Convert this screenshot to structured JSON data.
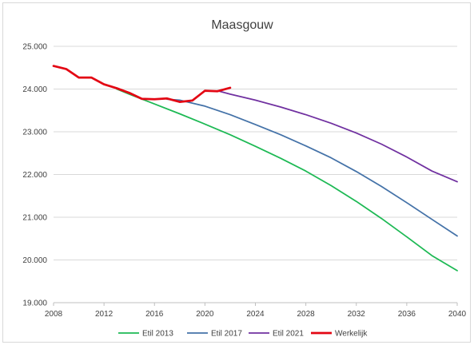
{
  "chart_data": {
    "type": "line",
    "title": "Maasgouw",
    "xlabel": "",
    "ylabel": "",
    "xlim": [
      2008,
      2040
    ],
    "ylim": [
      19000,
      25000
    ],
    "x_ticks": [
      2008,
      2012,
      2016,
      2020,
      2024,
      2028,
      2032,
      2036,
      2040
    ],
    "y_ticks": [
      19000,
      20000,
      21000,
      22000,
      23000,
      24000,
      25000
    ],
    "y_tick_labels": [
      "19.000",
      "20.000",
      "21.000",
      "22.000",
      "23.000",
      "24.000",
      "25.000"
    ],
    "grid": "horizontal",
    "legend_position": "bottom",
    "series": [
      {
        "name": "Etil 2013",
        "color": "#1db954",
        "x": [
          2013,
          2014,
          2016,
          2018,
          2020,
          2022,
          2024,
          2026,
          2028,
          2030,
          2032,
          2034,
          2036,
          2038,
          2040
        ],
        "values": [
          24000,
          23880,
          23650,
          23420,
          23180,
          22930,
          22660,
          22380,
          22080,
          21740,
          21370,
          20970,
          20540,
          20100,
          19750
        ]
      },
      {
        "name": "Etil 2017",
        "color": "#4472a8",
        "x": [
          2017,
          2018,
          2020,
          2022,
          2024,
          2026,
          2028,
          2030,
          2032,
          2034,
          2036,
          2038,
          2040
        ],
        "values": [
          23760,
          23740,
          23600,
          23400,
          23170,
          22930,
          22670,
          22390,
          22070,
          21720,
          21340,
          20950,
          20560
        ]
      },
      {
        "name": "Etil 2021",
        "color": "#7030a0",
        "x": [
          2021,
          2022,
          2024,
          2026,
          2028,
          2030,
          2032,
          2034,
          2036,
          2038,
          2040
        ],
        "values": [
          23960,
          23880,
          23740,
          23580,
          23400,
          23200,
          22970,
          22710,
          22410,
          22080,
          21830
        ]
      },
      {
        "name": "Werkelijk",
        "color": "#e30613",
        "x": [
          2008,
          2009,
          2010,
          2011,
          2012,
          2013,
          2014,
          2015,
          2016,
          2017,
          2018,
          2019,
          2020,
          2021,
          2022
        ],
        "values": [
          24540,
          24470,
          24270,
          24270,
          24110,
          24020,
          23910,
          23770,
          23760,
          23780,
          23700,
          23730,
          23960,
          23950,
          24030
        ]
      }
    ]
  }
}
